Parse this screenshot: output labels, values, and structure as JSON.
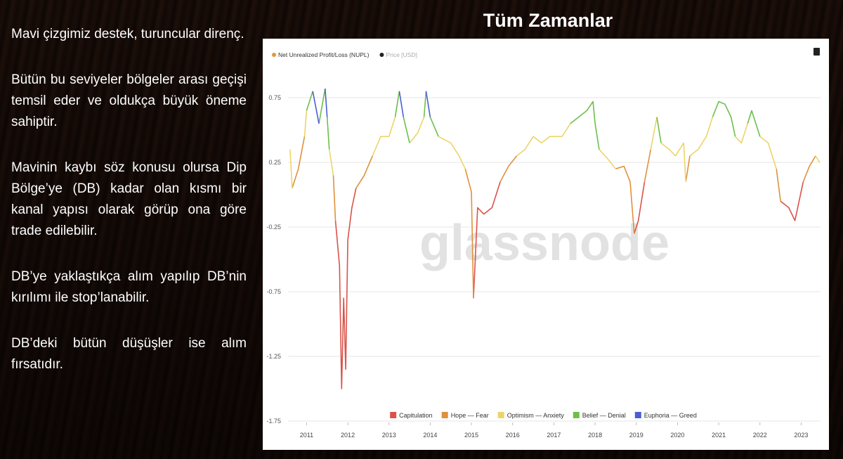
{
  "slide": {
    "title": "Tüm Zamanlar",
    "paragraphs": [
      "Mavi çizgimiz destek, turuncular direnç.",
      "Bütün bu seviyeler bölgeler arası geçişi temsil eder ve oldukça büyük öneme sahiptir.",
      "Mavinin kaybı söz konusu olursa Dip Bölge’ye (DB) kadar olan kısmı bir kanal yapısı olarak görüp ona göre trade edilebilir.",
      "DB’ye yaklaştıkça alım yapılıp DB’nin kırılımı ile stop’lanabilir.",
      "DB’deki bütün düşüşler ise alım fırsatıdır."
    ]
  },
  "chart_data": {
    "type": "line",
    "top_legend": [
      {
        "name": "Net Unrealized Profit/Loss (NUPL)",
        "color": "#e8943a"
      },
      {
        "name": "Price [USD]",
        "color": "#222222"
      }
    ],
    "watermark": "glassnode",
    "xlim": [
      2010.55,
      2023.47
    ],
    "xticks": [
      2011,
      2012,
      2013,
      2014,
      2015,
      2016,
      2017,
      2018,
      2019,
      2020,
      2021,
      2022,
      2023
    ],
    "ylim": [
      -1.75,
      1.0
    ],
    "yticks": [
      0.75,
      0.25,
      -0.25,
      -0.75,
      -1.25,
      -1.75
    ],
    "grid": true,
    "series": [
      {
        "name": "Capitulation",
        "color": "#d9534a",
        "x": [
          2011.7,
          2011.8,
          2011.85,
          2011.9,
          2011.95,
          2012.0,
          2012.1,
          2012.2,
          null,
          2015.05,
          2015.15,
          2015.3,
          2015.5,
          2015.7,
          null,
          2018.95,
          2019.05,
          2019.2,
          null,
          2022.5,
          2022.7,
          2022.85,
          2022.95,
          2023.05
        ],
        "values": [
          -0.2,
          -0.55,
          -1.5,
          -0.8,
          -1.35,
          -0.35,
          -0.1,
          0.05,
          null,
          -0.8,
          -0.1,
          -0.15,
          -0.1,
          0.1,
          null,
          -0.3,
          -0.2,
          0.1,
          null,
          -0.05,
          -0.1,
          -0.2,
          -0.05,
          0.1
        ]
      },
      {
        "name": "Hope — Fear",
        "color": "#e0913c",
        "x": [
          2010.65,
          2010.8,
          2010.95,
          null,
          2011.65,
          2011.7,
          null,
          2012.2,
          2012.4,
          2012.6,
          null,
          2014.85,
          2015.0,
          2015.05,
          null,
          2015.7,
          2015.9,
          2016.1,
          null,
          2018.5,
          2018.7,
          2018.85,
          2018.95,
          null,
          2019.2,
          2019.35,
          null,
          2020.2,
          2020.3,
          null,
          2022.4,
          2022.5,
          null,
          2023.05,
          2023.2,
          2023.35
        ],
        "values": [
          0.05,
          0.2,
          0.45,
          null,
          0.15,
          -0.2,
          null,
          0.05,
          0.15,
          0.3,
          null,
          0.2,
          0.02,
          -0.8,
          null,
          0.1,
          0.22,
          0.3,
          null,
          0.2,
          0.22,
          0.1,
          -0.3,
          null,
          0.1,
          0.35,
          null,
          0.1,
          0.3,
          null,
          0.2,
          -0.05,
          null,
          0.1,
          0.22,
          0.3
        ]
      },
      {
        "name": "Optimism — Anxiety",
        "color": "#ecd46a",
        "x": [
          2010.6,
          2010.65,
          null,
          2010.95,
          2011.0,
          null,
          2011.55,
          2011.65,
          null,
          2012.6,
          2012.8,
          2013.0,
          2013.15,
          null,
          2013.5,
          2013.7,
          2013.85,
          null,
          2014.2,
          2014.5,
          2014.7,
          2014.85,
          null,
          2016.1,
          2016.3,
          2016.5,
          2016.7,
          2016.9,
          2017.2,
          2017.4,
          null,
          2018.1,
          2018.3,
          2018.5,
          null,
          2019.35,
          2019.5,
          null,
          2019.6,
          2019.8,
          2019.95,
          2020.15,
          2020.2,
          null,
          2020.3,
          2020.5,
          2020.7,
          2020.85,
          null,
          2021.4,
          2021.55,
          2021.7,
          null,
          2022.0,
          2022.2,
          2022.4,
          null,
          2023.35,
          2023.45
        ],
        "values": [
          0.35,
          0.05,
          null,
          0.45,
          0.65,
          null,
          0.35,
          0.15,
          null,
          0.3,
          0.45,
          0.45,
          0.6,
          null,
          0.4,
          0.48,
          0.6,
          null,
          0.45,
          0.4,
          0.3,
          0.2,
          null,
          0.3,
          0.35,
          0.45,
          0.4,
          0.45,
          0.45,
          0.55,
          null,
          0.35,
          0.28,
          0.2,
          null,
          0.35,
          0.6,
          null,
          0.4,
          0.35,
          0.3,
          0.4,
          0.1,
          null,
          0.3,
          0.35,
          0.45,
          0.6,
          null,
          0.45,
          0.4,
          0.55,
          null,
          0.45,
          0.4,
          0.2,
          null,
          0.3,
          0.25
        ]
      },
      {
        "name": "Belief — Denial",
        "color": "#6cc04a",
        "x": [
          2011.0,
          2011.15,
          null,
          2011.3,
          2011.45,
          null,
          2011.5,
          2011.55,
          null,
          2013.15,
          2013.25,
          null,
          2013.35,
          2013.5,
          null,
          2013.85,
          2013.9,
          null,
          2014.0,
          2014.2,
          null,
          2017.4,
          2017.6,
          2017.8,
          2017.95,
          2018.0,
          2018.1,
          null,
          2019.5,
          2019.6,
          null,
          2020.85,
          2021.0,
          2021.15,
          2021.3,
          2021.4,
          null,
          2021.7,
          2021.8,
          2021.9,
          2022.0
        ],
        "values": [
          0.65,
          0.8,
          null,
          0.55,
          0.82,
          null,
          0.6,
          0.35,
          null,
          0.6,
          0.8,
          null,
          0.6,
          0.4,
          null,
          0.6,
          0.8,
          null,
          0.6,
          0.45,
          null,
          0.55,
          0.6,
          0.65,
          0.72,
          0.55,
          0.35,
          null,
          0.6,
          0.4,
          null,
          0.6,
          0.72,
          0.7,
          0.6,
          0.45,
          null,
          0.55,
          0.65,
          0.55,
          0.45
        ]
      },
      {
        "name": "Euphoria — Greed",
        "color": "#4a5fd6",
        "x": [
          2011.15,
          2011.3,
          null,
          2011.45,
          2011.5,
          null,
          2013.25,
          2013.35,
          null,
          2013.9,
          2014.0
        ],
        "values": [
          0.8,
          0.55,
          null,
          0.82,
          0.6,
          null,
          0.8,
          0.6,
          null,
          0.8,
          0.6
        ]
      }
    ]
  }
}
